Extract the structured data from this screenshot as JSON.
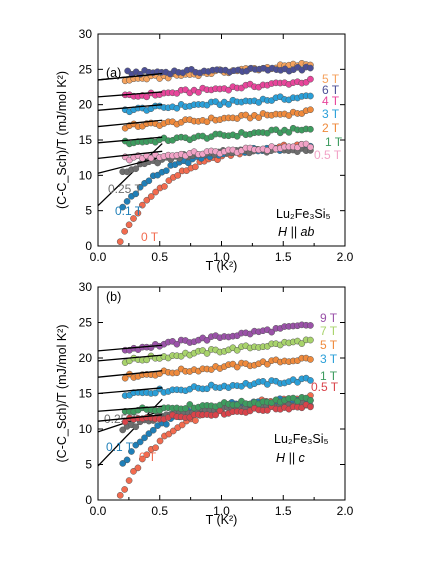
{
  "chart_data": [
    {
      "type": "scatter",
      "panel_label": "(a)",
      "xlabel": "T (K²)",
      "ylabel": "(C-C_Sch)/T (mJ/mol K²)",
      "xlim": [
        0,
        2.0
      ],
      "ylim": [
        0,
        30
      ],
      "xticks": [
        "0.0",
        "0.5",
        "1.0",
        "1.5",
        "2.0"
      ],
      "yticks": [
        "0",
        "5",
        "10",
        "15",
        "20",
        "25",
        "30"
      ],
      "annotation_compound": "Lu₂Fe₃Si₅",
      "annotation_field": "H || ab",
      "grid": false,
      "series": [
        {
          "name": "0 T",
          "color": "#f26b4f",
          "shape": "curve",
          "y0": 0.8,
          "yinf": 14.6,
          "tau": 0.42,
          "xstart": 0.18,
          "fit": null
        },
        {
          "name": "0.1 T",
          "color": "#1f7fb8",
          "shape": "curve",
          "y0": 5.5,
          "yinf": 14.0,
          "tau": 0.36,
          "xstart": 0.2,
          "fit": [
            5.7,
            14.5
          ]
        },
        {
          "name": "0.25 T",
          "color": "#6d6d6d",
          "shape": "curve",
          "y0": 10.3,
          "yinf": 13.7,
          "tau": 0.4,
          "xstart": 0.2,
          "fit": [
            10.3,
            12.6
          ]
        },
        {
          "name": "0.5 T",
          "color": "#f2a3c7",
          "shape": "line",
          "y0": 12.4,
          "slope": 1.2,
          "xstart": 0.22,
          "fit": [
            12.4,
            13.4
          ]
        },
        {
          "name": "1 T",
          "color": "#3d9c5f",
          "shape": "line",
          "y0": 14.6,
          "slope": 1.3,
          "xstart": 0.22,
          "fit": [
            14.6,
            15.4
          ]
        },
        {
          "name": "2 T",
          "color": "#ef8a3c",
          "shape": "line",
          "y0": 16.9,
          "slope": 1.4,
          "xstart": 0.22,
          "fit": [
            16.9,
            17.8
          ]
        },
        {
          "name": "3 T",
          "color": "#2a9fd8",
          "shape": "line",
          "y0": 19.2,
          "slope": 1.3,
          "xstart": 0.22,
          "fit": [
            19.2,
            20.0
          ]
        },
        {
          "name": "4 T",
          "color": "#e8459b",
          "shape": "line",
          "y0": 21.1,
          "slope": 1.5,
          "xstart": 0.22,
          "fit": [
            21.1,
            21.8
          ]
        },
        {
          "name": "5 T",
          "color": "#f5a25d",
          "shape": "line",
          "y0": 23.5,
          "slope": 1.5,
          "xstart": 0.22,
          "fit": [
            23.5,
            24.4
          ]
        },
        {
          "name": "6 T",
          "color": "#4c4f96",
          "shape": "line",
          "y0": 24.5,
          "slope": 0.4,
          "xstart": 0.24,
          "fit": [
            23.5,
            24.4
          ]
        }
      ]
    },
    {
      "type": "scatter",
      "panel_label": "(b)",
      "xlabel": "T (K²)",
      "ylabel": "(C-C_Sch)/T (mJ/mol K²)",
      "xlim": [
        0,
        2.0
      ],
      "ylim": [
        0,
        30
      ],
      "xticks": [
        "0.0",
        "0.5",
        "1.0",
        "1.5",
        "2.0"
      ],
      "yticks": [
        "0",
        "5",
        "10",
        "15",
        "20",
        "25",
        "30"
      ],
      "annotation_compound": "Lu₂Fe₃Si₅",
      "annotation_field": "H || c",
      "grid": false,
      "series": [
        {
          "name": "0 T",
          "color": "#f26b4f",
          "shape": "curve",
          "y0": 0.6,
          "yinf": 14.8,
          "tau": 0.42,
          "xstart": 0.18,
          "fit": null
        },
        {
          "name": "0.1 T",
          "color": "#1f7fb8",
          "shape": "curve",
          "y0": 5.0,
          "yinf": 14.2,
          "tau": 0.34,
          "xstart": 0.2,
          "fit": [
            4.8,
            14.2
          ]
        },
        {
          "name": "0.25 T",
          "color": "#6d6d6d",
          "shape": "curve",
          "y0": 9.8,
          "yinf": 13.6,
          "tau": 0.45,
          "xstart": 0.2,
          "fit": [
            9.6,
            12.6
          ]
        },
        {
          "name": "0.5 T",
          "color": "#d9434a",
          "shape": "line",
          "y0": 11.2,
          "slope": 1.4,
          "xstart": 0.22,
          "fit": [
            11.1,
            12.0
          ]
        },
        {
          "name": "1 T",
          "color": "#3d9c5f",
          "shape": "line",
          "y0": 12.6,
          "slope": 1.1,
          "xstart": 0.22,
          "fit": [
            12.5,
            13.2
          ]
        },
        {
          "name": "3 T",
          "color": "#2a9fd8",
          "shape": "line",
          "y0": 15.0,
          "slope": 1.3,
          "xstart": 0.22,
          "fit": [
            15.0,
            15.8
          ]
        },
        {
          "name": "5 T",
          "color": "#ef8a3c",
          "shape": "line",
          "y0": 17.4,
          "slope": 1.7,
          "xstart": 0.22,
          "fit": [
            17.3,
            18.2
          ]
        },
        {
          "name": "7 T",
          "color": "#a8d36b",
          "shape": "line",
          "y0": 19.6,
          "slope": 1.9,
          "xstart": 0.22,
          "fit": [
            19.6,
            20.4
          ]
        },
        {
          "name": "9 T",
          "color": "#9a52a8",
          "shape": "line",
          "y0": 21.2,
          "slope": 2.3,
          "xstart": 0.22,
          "fit": [
            21.0,
            21.8
          ]
        }
      ]
    }
  ]
}
